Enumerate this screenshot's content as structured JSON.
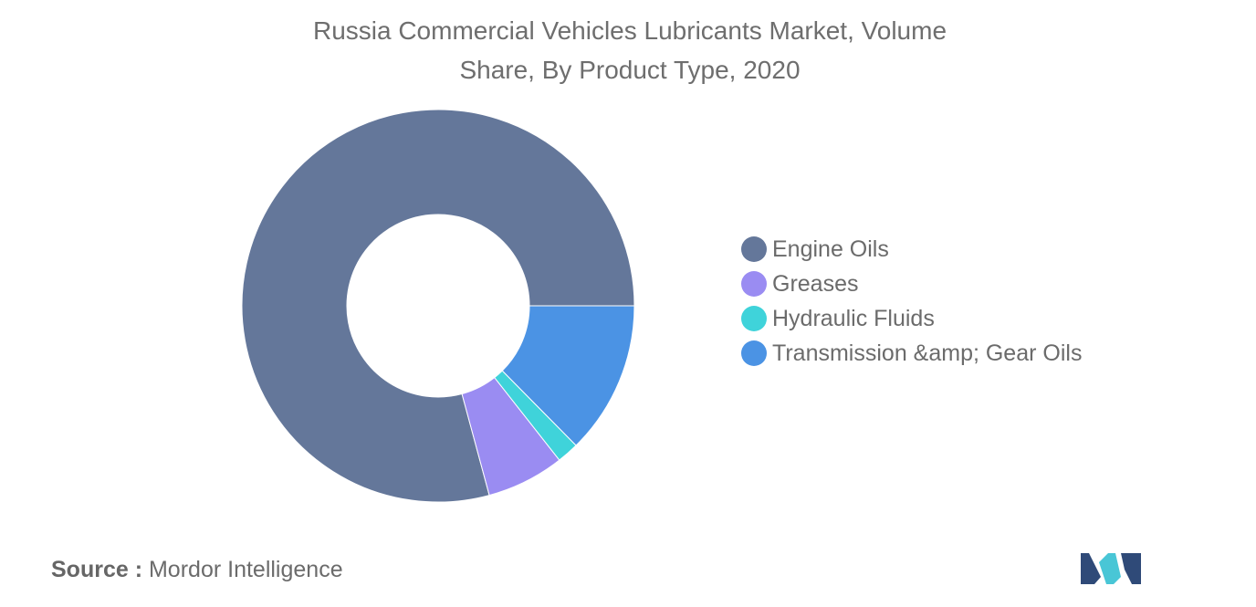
{
  "chart_data": {
    "type": "pie",
    "style": "donut",
    "title": "Russia Commercial Vehicles Lubricants Market, Volume Share, By Product Type, 2020",
    "categories": [
      "Engine Oils",
      "Greases",
      "Hydraulic Fluids",
      "Transmission &amp; Gear Oils"
    ],
    "values": [
      79.2,
      6.4,
      1.8,
      12.6
    ],
    "unit": "%",
    "colors": [
      "#64779a",
      "#9a8cf2",
      "#3fd3da",
      "#4b93e4"
    ],
    "legend_position": "right"
  },
  "title": {
    "line1": "Russia Commercial Vehicles Lubricants Market, Volume",
    "line2": "Share, By Product Type, 2020"
  },
  "legend": {
    "items": [
      {
        "label": "Engine Oils",
        "color": "#64779a"
      },
      {
        "label": "Greases",
        "color": "#9a8cf2"
      },
      {
        "label": "Hydraulic Fluids",
        "color": "#3fd3da"
      },
      {
        "label": "Transmission &amp; Gear Oils",
        "color": "#4b93e4"
      }
    ]
  },
  "source": {
    "key": "Source :",
    "value": "Mordor Intelligence"
  },
  "logo": {
    "icon": "mordor-intelligence-logo-icon",
    "colors": [
      "#2f4a78",
      "#49c6d6"
    ]
  }
}
